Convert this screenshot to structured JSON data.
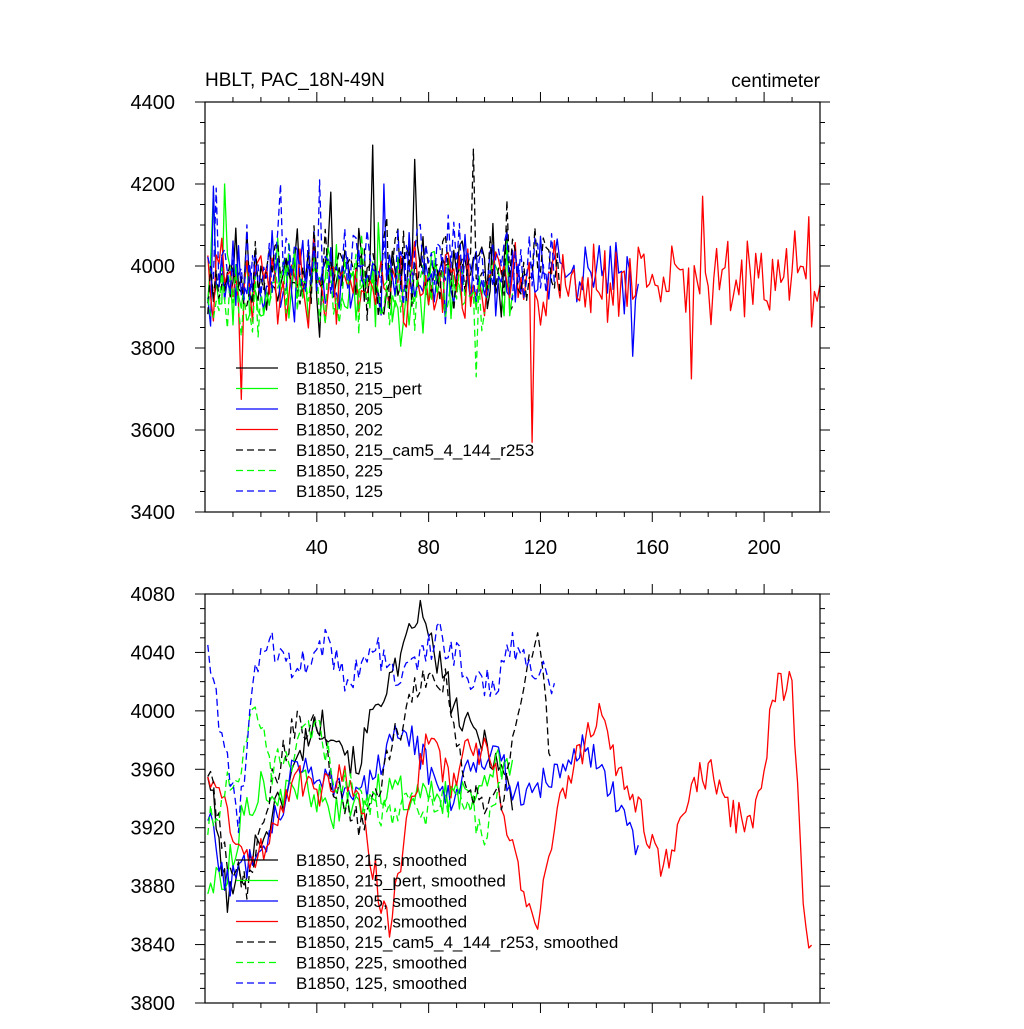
{
  "chart_data": [
    {
      "type": "line",
      "title": "HBLT, PAC_18N-49N",
      "units": "centimeter",
      "xlabel": "",
      "ylabel": "",
      "xlim": [
        0,
        220
      ],
      "ylim": [
        3400,
        4400
      ],
      "x_ticks": [
        40,
        80,
        120,
        160,
        200
      ],
      "y_ticks": [
        3400,
        3600,
        3800,
        4000,
        4200,
        4400
      ],
      "legend_position": "lower-left",
      "series": [
        {
          "name": "B1850, 215",
          "color": "#000000",
          "style": "solid",
          "length": 110,
          "mean": 3980,
          "amp": 120,
          "seed": 11,
          "spikes": [
            [
              60,
              4295
            ],
            [
              75,
              4260
            ],
            [
              45,
              4180
            ]
          ]
        },
        {
          "name": "B1850, 215_pert",
          "color": "#00ff00",
          "style": "solid",
          "length": 110,
          "mean": 3950,
          "amp": 120,
          "seed": 23,
          "spikes": [
            [
              7,
              4200
            ],
            [
              3,
              4180
            ]
          ]
        },
        {
          "name": "B1850, 205",
          "color": "#0000ff",
          "style": "solid",
          "length": 155,
          "mean": 3970,
          "amp": 110,
          "seed": 37,
          "spikes": [
            [
              3,
              4195
            ],
            [
              64,
              4200
            ],
            [
              153,
              3780
            ]
          ]
        },
        {
          "name": "B1850, 202",
          "color": "#ff0000",
          "style": "solid",
          "length": 220,
          "mean": 3960,
          "amp": 110,
          "seed": 41,
          "spikes": [
            [
              117,
              3570
            ],
            [
              13,
              3675
            ],
            [
              178,
              4170
            ],
            [
              216,
              4120
            ],
            [
              174,
              3725
            ],
            [
              187,
              4060
            ],
            [
              206,
              3960
            ]
          ]
        },
        {
          "name": "B1850, 215_cam5_4_144_r253",
          "color": "#000000",
          "style": "dashed",
          "length": 127,
          "mean": 3990,
          "amp": 110,
          "seed": 53,
          "spikes": [
            [
              96,
              4285
            ],
            [
              108,
              4160
            ]
          ]
        },
        {
          "name": "B1850, 225",
          "color": "#00ff00",
          "style": "dashed",
          "length": 100,
          "mean": 3940,
          "amp": 110,
          "seed": 67,
          "spikes": [
            [
              97,
              3730
            ]
          ]
        },
        {
          "name": "B1850, 125",
          "color": "#0000ff",
          "style": "dashed",
          "length": 125,
          "mean": 4010,
          "amp": 110,
          "seed": 79,
          "spikes": [
            [
              27,
              4200
            ],
            [
              41,
              4210
            ],
            [
              4,
              4190
            ]
          ]
        }
      ]
    },
    {
      "type": "line",
      "title": "",
      "xlabel": "",
      "ylabel": "",
      "xlim": [
        0,
        220
      ],
      "ylim": [
        3800,
        4080
      ],
      "x_ticks": [
        40,
        80,
        120,
        160,
        200
      ],
      "y_ticks": [
        3800,
        3840,
        3880,
        3920,
        3960,
        4000,
        4040,
        4080
      ],
      "legend_position": "lower-left",
      "series": [
        {
          "name": "B1850, 215, smoothed",
          "color": "#000000",
          "style": "solid",
          "length": 110,
          "seed": 101,
          "knots": [
            [
              1,
              3960
            ],
            [
              8,
              3870
            ],
            [
              16,
              3900
            ],
            [
              22,
              3920
            ],
            [
              30,
              3950
            ],
            [
              38,
              3990
            ],
            [
              46,
              3990
            ],
            [
              54,
              3960
            ],
            [
              62,
              4010
            ],
            [
              70,
              4030
            ],
            [
              76,
              4070
            ],
            [
              84,
              4030
            ],
            [
              92,
              3990
            ],
            [
              100,
              3980
            ],
            [
              106,
              3960
            ],
            [
              110,
              3940
            ]
          ]
        },
        {
          "name": "B1850, 215_pert, smoothed",
          "color": "#00ff00",
          "style": "solid",
          "length": 110,
          "seed": 113,
          "knots": [
            [
              1,
              3880
            ],
            [
              8,
              3890
            ],
            [
              14,
              3930
            ],
            [
              20,
              3950
            ],
            [
              28,
              3940
            ],
            [
              36,
              3950
            ],
            [
              44,
              3930
            ],
            [
              50,
              3930
            ],
            [
              58,
              3940
            ],
            [
              66,
              3950
            ],
            [
              74,
              3940
            ],
            [
              82,
              3940
            ],
            [
              90,
              3940
            ],
            [
              98,
              3950
            ],
            [
              104,
              3970
            ],
            [
              110,
              3960
            ]
          ]
        },
        {
          "name": "B1850, 205, smoothed",
          "color": "#0000ff",
          "style": "solid",
          "length": 155,
          "seed": 127,
          "knots": [
            [
              1,
              3930
            ],
            [
              8,
              3880
            ],
            [
              16,
              3900
            ],
            [
              24,
              3920
            ],
            [
              32,
              3960
            ],
            [
              40,
              3960
            ],
            [
              48,
              3950
            ],
            [
              56,
              3940
            ],
            [
              64,
              3970
            ],
            [
              72,
              3990
            ],
            [
              80,
              3960
            ],
            [
              88,
              3940
            ],
            [
              96,
              3970
            ],
            [
              104,
              3970
            ],
            [
              112,
              3940
            ],
            [
              120,
              3950
            ],
            [
              128,
              3960
            ],
            [
              136,
              3980
            ],
            [
              144,
              3950
            ],
            [
              150,
              3930
            ],
            [
              155,
              3900
            ]
          ]
        },
        {
          "name": "B1850, 202, smoothed",
          "color": "#ff0000",
          "style": "solid",
          "length": 217,
          "seed": 131,
          "knots": [
            [
              1,
              3960
            ],
            [
              8,
              3930
            ],
            [
              16,
              3890
            ],
            [
              24,
              3920
            ],
            [
              32,
              3960
            ],
            [
              40,
              3940
            ],
            [
              48,
              3960
            ],
            [
              56,
              3930
            ],
            [
              62,
              3880
            ],
            [
              66,
              3845
            ],
            [
              72,
              3930
            ],
            [
              80,
              3980
            ],
            [
              88,
              3950
            ],
            [
              96,
              3980
            ],
            [
              104,
              3960
            ],
            [
              112,
              3890
            ],
            [
              118,
              3850
            ],
            [
              126,
              3930
            ],
            [
              134,
              3970
            ],
            [
              140,
              4000
            ],
            [
              148,
              3960
            ],
            [
              156,
              3930
            ],
            [
              164,
              3890
            ],
            [
              172,
              3940
            ],
            [
              180,
              3960
            ],
            [
              188,
              3930
            ],
            [
              196,
              3920
            ],
            [
              204,
              4015
            ],
            [
              210,
              4020
            ],
            [
              214,
              3870
            ],
            [
              217,
              3830
            ]
          ]
        },
        {
          "name": "B1850, 215_cam5_4_144_r253, smoothed",
          "color": "#000000",
          "style": "dashed",
          "length": 124,
          "seed": 149,
          "knots": [
            [
              1,
              3960
            ],
            [
              8,
              3900
            ],
            [
              16,
              3880
            ],
            [
              24,
              3950
            ],
            [
              32,
              3990
            ],
            [
              40,
              3990
            ],
            [
              48,
              3940
            ],
            [
              56,
              3920
            ],
            [
              64,
              3960
            ],
            [
              72,
              4000
            ],
            [
              80,
              4030
            ],
            [
              86,
              4020
            ],
            [
              92,
              3960
            ],
            [
              100,
              3930
            ],
            [
              106,
              3940
            ],
            [
              112,
              4000
            ],
            [
              116,
              4050
            ],
            [
              120,
              4040
            ],
            [
              124,
              3960
            ]
          ]
        },
        {
          "name": "B1850, 225, smoothed",
          "color": "#00ff00",
          "style": "dashed",
          "length": 107,
          "seed": 151,
          "knots": [
            [
              1,
              3920
            ],
            [
              6,
              3940
            ],
            [
              12,
              3960
            ],
            [
              18,
              4000
            ],
            [
              24,
              3960
            ],
            [
              32,
              3970
            ],
            [
              40,
              3990
            ],
            [
              48,
              3950
            ],
            [
              56,
              3940
            ],
            [
              64,
              3930
            ],
            [
              72,
              3940
            ],
            [
              80,
              3930
            ],
            [
              88,
              3940
            ],
            [
              96,
              3930
            ],
            [
              100,
              3910
            ],
            [
              104,
              3940
            ],
            [
              107,
              3960
            ]
          ]
        },
        {
          "name": "B1850, 125, smoothed",
          "color": "#0000ff",
          "style": "dashed",
          "length": 125,
          "seed": 163,
          "knots": [
            [
              1,
              4050
            ],
            [
              4,
              4010
            ],
            [
              8,
              3960
            ],
            [
              12,
              3920
            ],
            [
              16,
              4000
            ],
            [
              20,
              4050
            ],
            [
              26,
              4040
            ],
            [
              32,
              4030
            ],
            [
              38,
              4040
            ],
            [
              44,
              4050
            ],
            [
              50,
              4020
            ],
            [
              56,
              4030
            ],
            [
              62,
              4040
            ],
            [
              70,
              4020
            ],
            [
              78,
              4040
            ],
            [
              84,
              4050
            ],
            [
              90,
              4040
            ],
            [
              96,
              4020
            ],
            [
              104,
              4020
            ],
            [
              112,
              4050
            ],
            [
              118,
              4030
            ],
            [
              122,
              4020
            ],
            [
              125,
              4020
            ]
          ]
        }
      ]
    }
  ]
}
